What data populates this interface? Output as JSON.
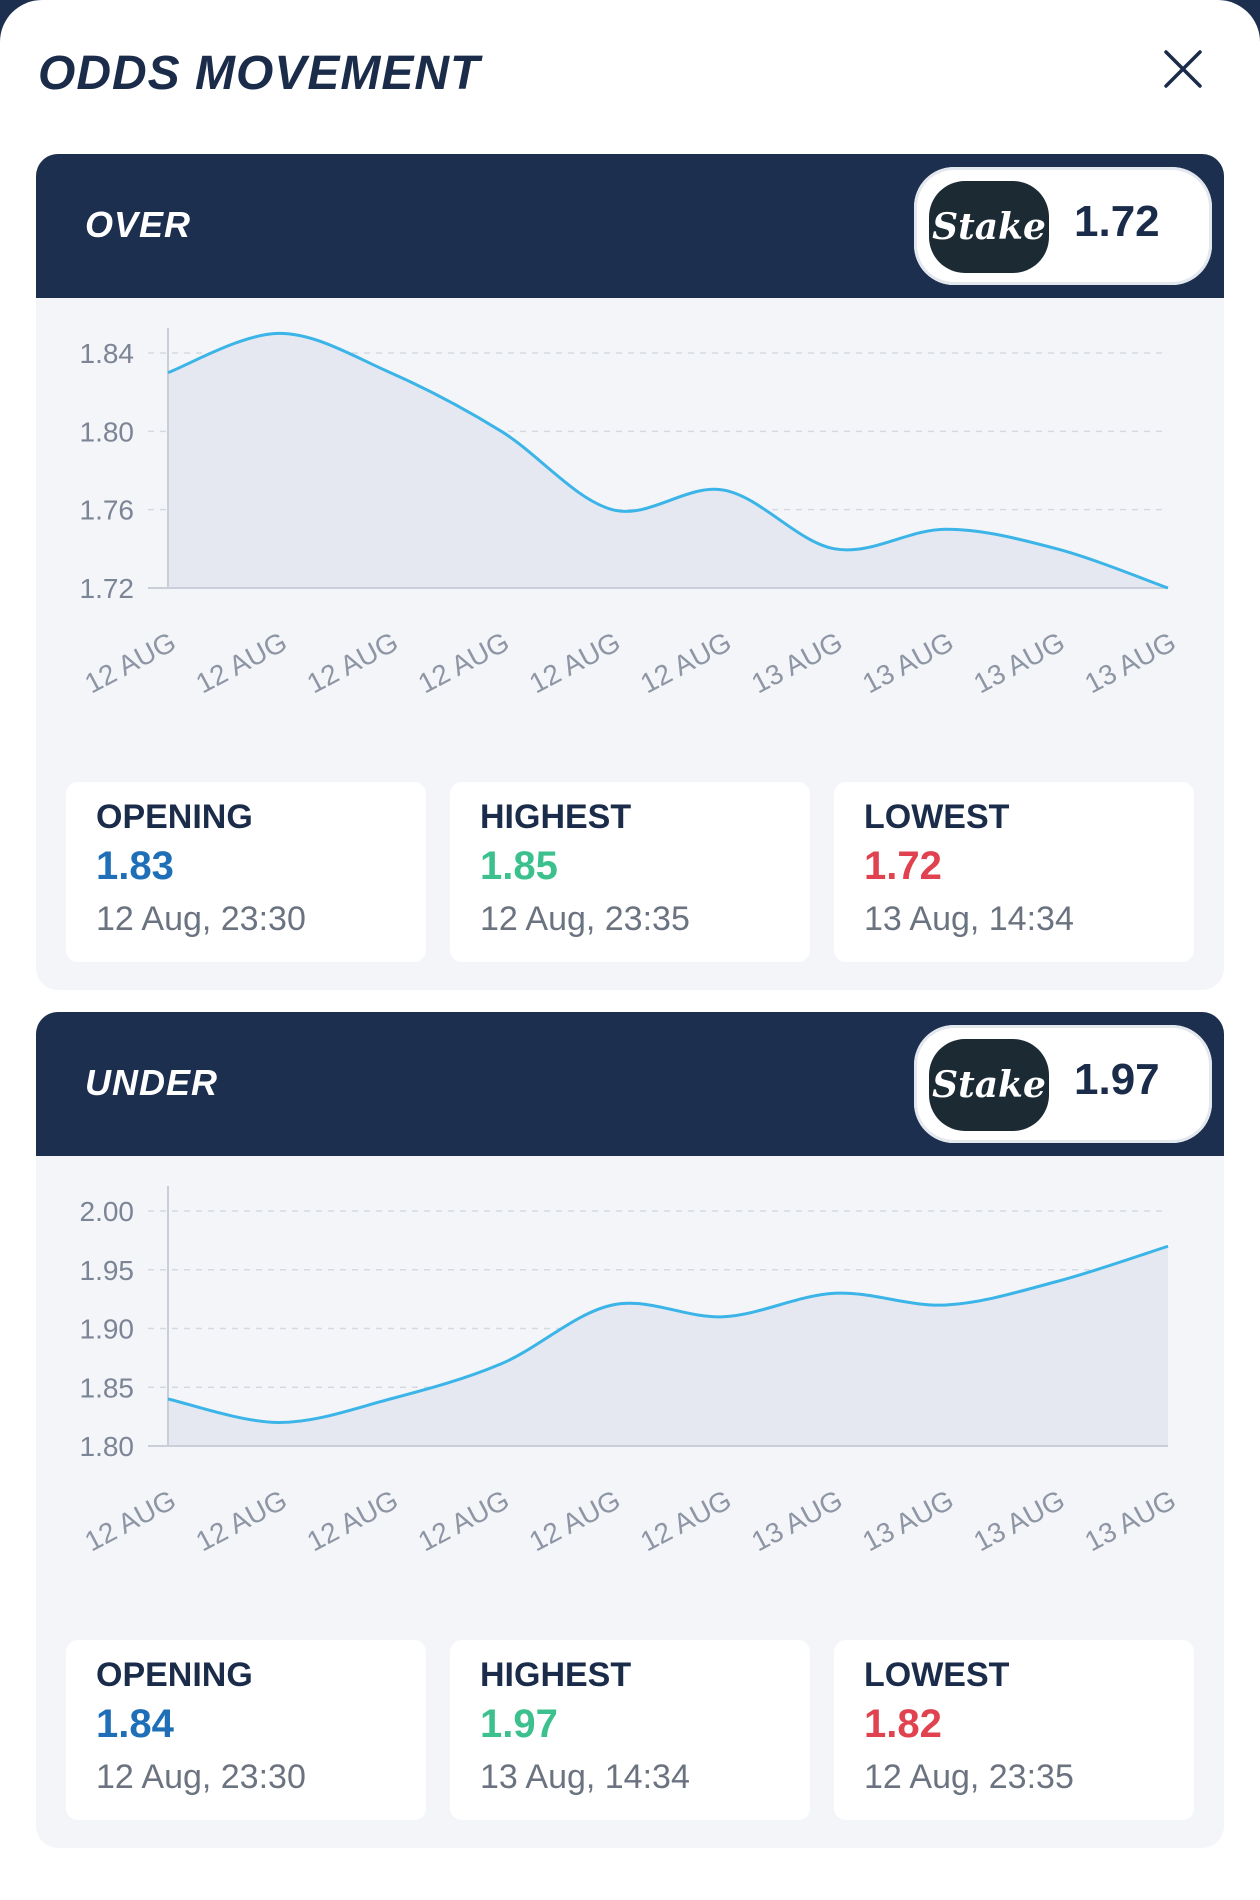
{
  "modal": {
    "title": "ODDS MOVEMENT"
  },
  "colors": {
    "navy": "#1d2f4e",
    "line": "#3bb4e8",
    "area": "#e5e8f0",
    "opening": "#1f6fb8",
    "highest": "#3cc18e",
    "lowest": "#e0434f"
  },
  "icons": {
    "close": "close-icon",
    "bookmaker": "stake-logo"
  },
  "markets": [
    {
      "label": "OVER",
      "bookmaker": "Stake",
      "odds": "1.72",
      "stats": {
        "opening": {
          "label": "OPENING",
          "value": "1.83",
          "time": "12 Aug, 23:30"
        },
        "highest": {
          "label": "HIGHEST",
          "value": "1.85",
          "time": "12 Aug, 23:35"
        },
        "lowest": {
          "label": "LOWEST",
          "value": "1.72",
          "time": "13 Aug, 14:34"
        }
      }
    },
    {
      "label": "UNDER",
      "bookmaker": "Stake",
      "odds": "1.97",
      "stats": {
        "opening": {
          "label": "OPENING",
          "value": "1.84",
          "time": "12 Aug, 23:30"
        },
        "highest": {
          "label": "HIGHEST",
          "value": "1.97",
          "time": "13 Aug, 14:34"
        },
        "lowest": {
          "label": "LOWEST",
          "value": "1.82",
          "time": "12 Aug, 23:35"
        }
      }
    }
  ],
  "chart_data": [
    {
      "type": "area",
      "categories": [
        "12 AUG",
        "12 AUG",
        "12 AUG",
        "12 AUG",
        "12 AUG",
        "12 AUG",
        "13 AUG",
        "13 AUG",
        "13 AUG",
        "13 AUG"
      ],
      "values": [
        1.83,
        1.85,
        1.83,
        1.8,
        1.76,
        1.77,
        1.74,
        1.75,
        1.74,
        1.72
      ],
      "yticks": [
        "1.84",
        "1.80",
        "1.76",
        "1.72"
      ],
      "ylim": [
        1.72,
        1.84
      ],
      "grid": true
    },
    {
      "type": "area",
      "categories": [
        "12 AUG",
        "12 AUG",
        "12 AUG",
        "12 AUG",
        "12 AUG",
        "12 AUG",
        "13 AUG",
        "13 AUG",
        "13 AUG",
        "13 AUG"
      ],
      "values": [
        1.84,
        1.82,
        1.84,
        1.87,
        1.92,
        1.91,
        1.93,
        1.92,
        1.94,
        1.97
      ],
      "yticks": [
        "2.00",
        "1.95",
        "1.90",
        "1.85",
        "1.80"
      ],
      "ylim": [
        1.8,
        2.0
      ],
      "grid": true
    }
  ]
}
